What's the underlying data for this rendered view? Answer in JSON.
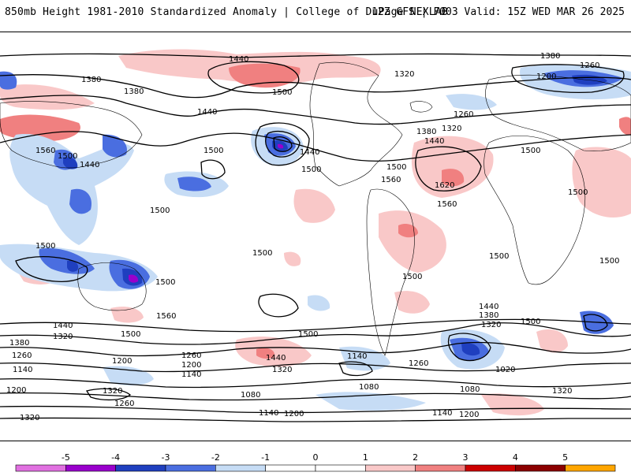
{
  "header": {
    "title_left": "850mb Height 1981-2010 Standardized Anomaly | College of DuPage NEXLAB",
    "title_right": "12Z GFS | F003 Valid: 15Z WED MAR 26 2025"
  },
  "map": {
    "projection": "global cylindrical",
    "contour_labels": [
      "1440",
      "1380",
      "1500",
      "1260",
      "1200",
      "1380",
      "1380",
      "1440",
      "1320",
      "1500",
      "1560",
      "1440",
      "1500",
      "1260",
      "1380",
      "1320",
      "1440",
      "1500",
      "1500",
      "1440",
      "1500",
      "1500",
      "1620",
      "1560",
      "1560",
      "1500",
      "1500",
      "1500",
      "1500",
      "1500",
      "1500",
      "1560",
      "1500",
      "1500",
      "1500",
      "1440",
      "1380",
      "1320",
      "1440",
      "1380",
      "1320",
      "1260",
      "1200",
      "1140",
      "1500",
      "1440",
      "1320",
      "1260",
      "1200",
      "1140",
      "1080",
      "1020",
      "1080",
      "1320",
      "1260",
      "1320",
      "1140",
      "1200",
      "1260",
      "1200",
      "1140",
      "1080",
      "1320",
      "1200",
      "1140"
    ]
  },
  "colorbar": {
    "tick_labels": [
      "-5",
      "-4",
      "-3",
      "-2",
      "-1",
      "0",
      "1",
      "2",
      "3",
      "4",
      "5"
    ],
    "colors": [
      "#e070e0",
      "#9900cc",
      "#1f3fbf",
      "#4a6ee0",
      "#c6dcf5",
      "#ffffff",
      "#ffffff",
      "#f9c8c8",
      "#f08080",
      "#cc0000",
      "#8b0000",
      "#ffa500"
    ]
  }
}
